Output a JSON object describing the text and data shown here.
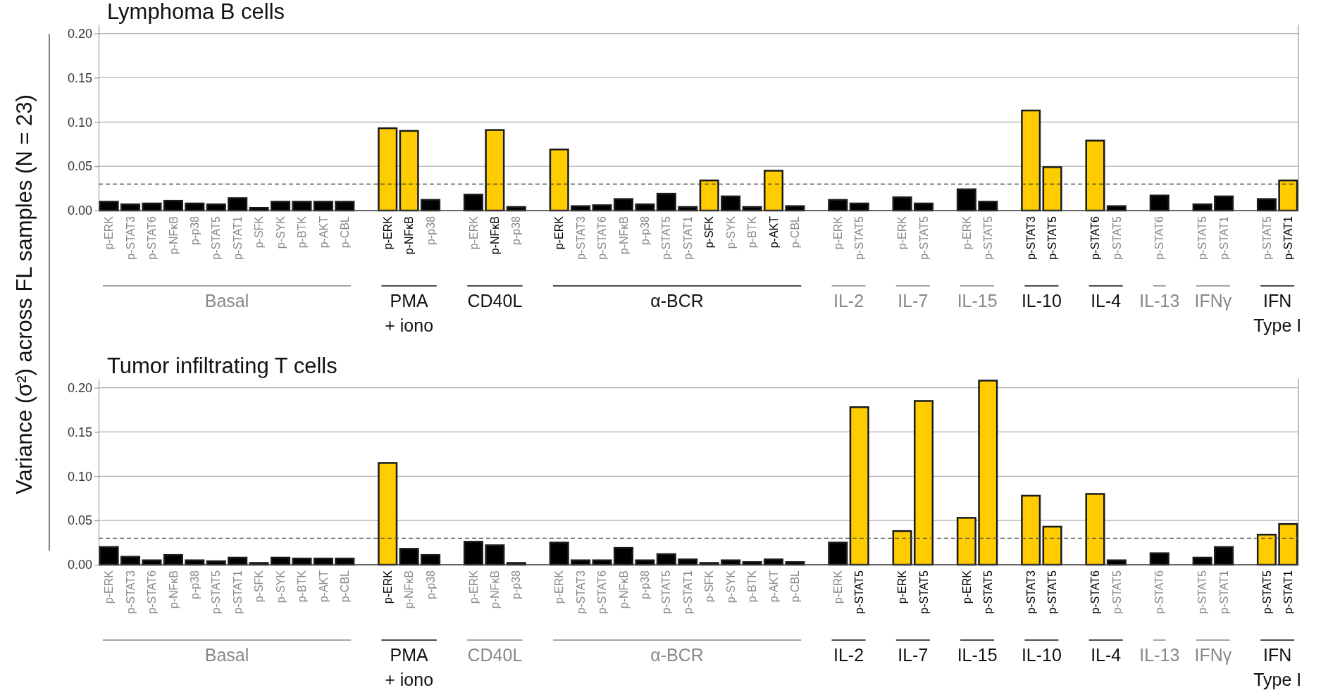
{
  "chart_data": [
    {
      "type": "bar",
      "title": "Lymphoma B cells",
      "ylabel": "Variance (σ²) across FL samples (N = 23)",
      "categories": [
        "p-ERK",
        "p-STAT3",
        "p-STAT6",
        "p-NFκB",
        "p-p38",
        "p-STAT5",
        "p-STAT1",
        "p-SFK",
        "p-SYK",
        "p-BTK",
        "p-AKT",
        "p-CBL",
        null,
        "p-ERK",
        "p-NFκB",
        "p-p38",
        null,
        "p-ERK",
        "p-NFκB",
        "p-p38",
        null,
        "p-ERK",
        "p-STAT3",
        "p-STAT6",
        "p-NFκB",
        "p-p38",
        "p-STAT5",
        "p-STAT1",
        "p-SFK",
        "p-SYK",
        "p-BTK",
        "p-AKT",
        "p-CBL",
        null,
        "p-ERK",
        "p-STAT5",
        null,
        "p-ERK",
        "p-STAT5",
        null,
        "p-ERK",
        "p-STAT5",
        null,
        "p-STAT3",
        "p-STAT5",
        null,
        "p-STAT6",
        "p-STAT5",
        null,
        "p-STAT6",
        null,
        "p-STAT5",
        "p-STAT1",
        null,
        "p-STAT5",
        "p-STAT1"
      ],
      "values": [
        0.01,
        0.007,
        0.008,
        0.011,
        0.008,
        0.007,
        0.014,
        0.003,
        0.01,
        0.01,
        0.01,
        0.01,
        null,
        0.093,
        0.09,
        0.012,
        null,
        0.018,
        0.091,
        0.004,
        null,
        0.069,
        0.005,
        0.006,
        0.013,
        0.007,
        0.019,
        0.004,
        0.034,
        0.016,
        0.004,
        0.045,
        0.005,
        null,
        0.012,
        0.008,
        null,
        0.015,
        0.008,
        null,
        0.024,
        0.01,
        null,
        0.113,
        0.049,
        null,
        0.079,
        0.005,
        null,
        0.017,
        null,
        0.007,
        0.016,
        null,
        0.013,
        0.034
      ],
      "colors": [
        "#000000",
        "#000000",
        "#000000",
        "#000000",
        "#000000",
        "#000000",
        "#000000",
        "#000000",
        "#000000",
        "#000000",
        "#000000",
        "#000000",
        null,
        "#ffcc00",
        "#ffcc00",
        "#000000",
        null,
        "#000000",
        "#ffcc00",
        "#000000",
        null,
        "#ffcc00",
        "#000000",
        "#000000",
        "#000000",
        "#000000",
        "#000000",
        "#000000",
        "#ffcc00",
        "#000000",
        "#000000",
        "#ffcc00",
        "#000000",
        null,
        "#000000",
        "#000000",
        null,
        "#000000",
        "#000000",
        null,
        "#000000",
        "#000000",
        null,
        "#ffcc00",
        "#ffcc00",
        null,
        "#ffcc00",
        "#000000",
        null,
        "#000000",
        null,
        "#000000",
        "#000000",
        null,
        "#000000",
        "#ffcc00"
      ],
      "ylim": [
        0,
        0.21
      ],
      "yticks": [
        {
          "value": 0,
          "label": "0.00"
        },
        {
          "value": 0.05,
          "label": "0.05"
        },
        {
          "value": 0.1,
          "label": "0.10"
        },
        {
          "value": 0.15,
          "label": "0.15"
        },
        {
          "value": 0.2,
          "label": "0.20"
        }
      ],
      "grid": "y",
      "ref_lines": [
        {
          "axis": "y",
          "value": 0.03,
          "color": "#333333",
          "line_style": "dashed"
        }
      ],
      "annotations": [
        "Basal",
        "PMA\n+ iono",
        "CD40L",
        "α-BCR",
        "IL-2",
        "IL-7",
        "IL-15",
        "IL-10",
        "IL-4",
        "IL-13",
        "IFNγ",
        "IFN\nType I"
      ]
    },
    {
      "type": "bar",
      "title": "Tumor infiltrating T cells",
      "categories": [
        "p-ERK",
        "p-STAT3",
        "p-STAT6",
        "p-NFκB",
        "p-p38",
        "p-STAT5",
        "p-STAT1",
        "p-SFK",
        "p-SYK",
        "p-BTK",
        "p-AKT",
        "p-CBL",
        null,
        "p-ERK",
        "p-NFκB",
        "p-p38",
        null,
        "p-ERK",
        "p-NFκB",
        "p-p38",
        null,
        "p-ERK",
        "p-STAT3",
        "p-STAT6",
        "p-NFκB",
        "p-p38",
        "p-STAT5",
        "p-STAT1",
        "p-SFK",
        "p-SYK",
        "p-BTK",
        "p-AKT",
        "p-CBL",
        null,
        "p-ERK",
        "p-STAT5",
        null,
        "p-ERK",
        "p-STAT5",
        null,
        "p-ERK",
        "p-STAT5",
        null,
        "p-STAT3",
        "p-STAT5",
        null,
        "p-STAT6",
        "p-STAT5",
        null,
        "p-STAT6",
        null,
        "p-STAT5",
        "p-STAT1",
        null,
        "p-STAT5",
        "p-STAT1"
      ],
      "values": [
        0.02,
        0.009,
        0.005,
        0.011,
        0.005,
        0.004,
        0.008,
        0.002,
        0.008,
        0.007,
        0.007,
        0.007,
        null,
        0.115,
        0.018,
        0.011,
        null,
        0.026,
        0.022,
        0.002,
        null,
        0.025,
        0.005,
        0.005,
        0.019,
        0.005,
        0.012,
        0.006,
        0.002,
        0.005,
        0.003,
        0.006,
        0.003,
        null,
        0.025,
        0.178,
        null,
        0.038,
        0.185,
        null,
        0.053,
        0.208,
        null,
        0.078,
        0.043,
        null,
        0.08,
        0.005,
        null,
        0.013,
        null,
        0.008,
        0.02,
        null,
        0.034,
        0.046
      ],
      "colors": [
        "#000000",
        "#000000",
        "#000000",
        "#000000",
        "#000000",
        "#000000",
        "#000000",
        "#000000",
        "#000000",
        "#000000",
        "#000000",
        "#000000",
        null,
        "#ffcc00",
        "#000000",
        "#000000",
        null,
        "#000000",
        "#000000",
        "#000000",
        null,
        "#000000",
        "#000000",
        "#000000",
        "#000000",
        "#000000",
        "#000000",
        "#000000",
        "#000000",
        "#000000",
        "#000000",
        "#000000",
        "#000000",
        null,
        "#000000",
        "#ffcc00",
        null,
        "#ffcc00",
        "#ffcc00",
        null,
        "#ffcc00",
        "#ffcc00",
        null,
        "#ffcc00",
        "#ffcc00",
        null,
        "#ffcc00",
        "#000000",
        null,
        "#000000",
        null,
        "#000000",
        "#000000",
        null,
        "#ffcc00",
        "#ffcc00"
      ],
      "ylim": [
        0,
        0.21
      ],
      "yticks": [
        {
          "value": 0,
          "label": "0.00"
        },
        {
          "value": 0.05,
          "label": "0.05"
        },
        {
          "value": 0.1,
          "label": "0.10"
        },
        {
          "value": 0.15,
          "label": "0.15"
        },
        {
          "value": 0.2,
          "label": "0.20"
        }
      ],
      "grid": "y",
      "ref_lines": [
        {
          "axis": "y",
          "value": 0.03,
          "color": "#555555",
          "line_style": "dashed"
        }
      ],
      "annotations": [
        "Basal",
        "PMA\n+ iono",
        "CD40L",
        "α-BCR",
        "IL-2",
        "IL-7",
        "IL-15",
        "IL-10",
        "IL-4",
        "IL-13",
        "IFNγ",
        "IFN\nType I"
      ]
    }
  ]
}
